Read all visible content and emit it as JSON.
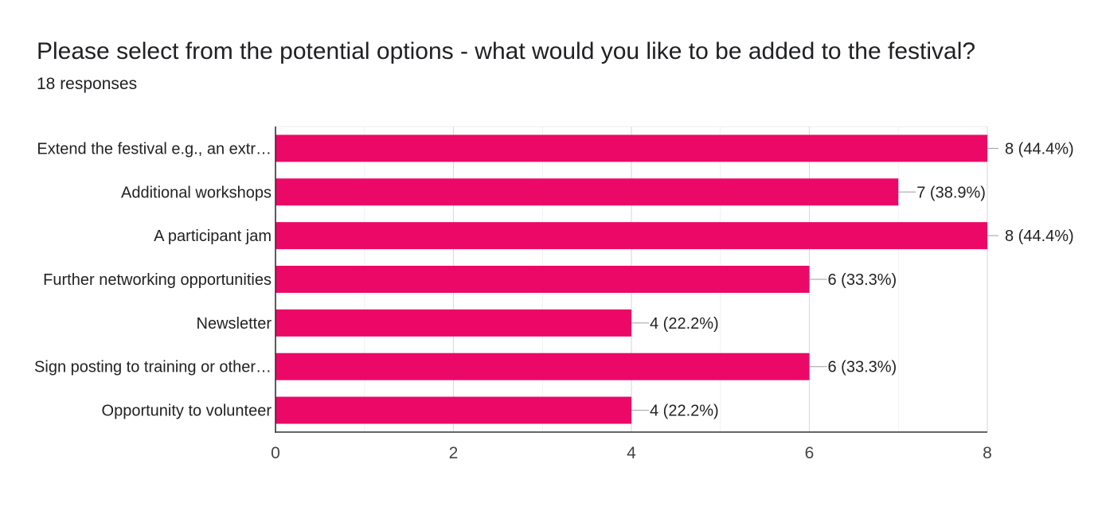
{
  "question": {
    "title": "Please select from the potential options - what would you like to be added to the festival?",
    "responses_label": "18 responses"
  },
  "chart_data": {
    "type": "bar",
    "orientation": "horizontal",
    "categories": [
      "Extend the festival e.g., an extr…",
      "Additional workshops",
      "A participant jam",
      "Further networking opportunities",
      "Newsletter",
      "Sign posting to training or other…",
      "Opportunity to volunteer"
    ],
    "values": [
      8,
      7,
      8,
      6,
      4,
      6,
      4
    ],
    "data_labels": [
      "8 (44.4%)",
      "7 (38.9%)",
      "8 (44.4%)",
      "6 (33.3%)",
      "4 (22.2%)",
      "6 (33.3%)",
      "4 (22.2%)"
    ],
    "xlim": [
      0,
      8
    ],
    "x_ticks": [
      "0",
      "2",
      "4",
      "6",
      "8"
    ],
    "grid": true,
    "legend": "none",
    "bar_color": "#ec0867"
  }
}
